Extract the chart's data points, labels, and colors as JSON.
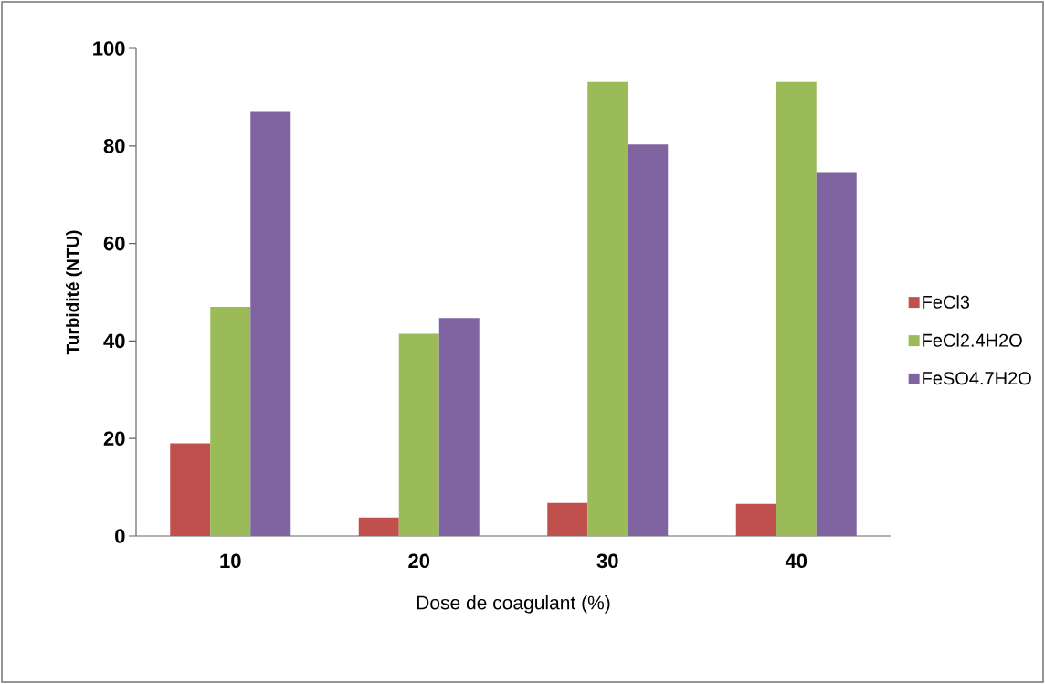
{
  "chart_data": {
    "type": "bar",
    "xlabel": "Dose de coagulant (%)",
    "ylabel": "Turbidité (NTU)",
    "categories": [
      "10",
      "20",
      "30",
      "40"
    ],
    "series": [
      {
        "name": "FeCl3",
        "color": "#c0504d",
        "values": [
          19,
          3.8,
          6.8,
          6.6
        ]
      },
      {
        "name": "FeCl2.4H2O",
        "color": "#9bbb59",
        "values": [
          47,
          41.5,
          93.1,
          93.1
        ]
      },
      {
        "name": "FeSO4.7H2O",
        "color": "#8064a2",
        "values": [
          87,
          44.7,
          80.3,
          74.6
        ]
      }
    ],
    "ylim": [
      0,
      100
    ],
    "yticks": [
      0,
      20,
      40,
      60,
      80,
      100
    ],
    "legend": "right"
  }
}
